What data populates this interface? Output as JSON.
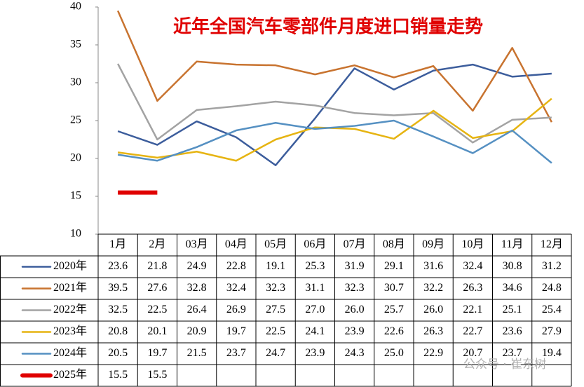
{
  "chart_data": {
    "type": "line",
    "title": "近年全国汽车零部件月度进口销量走势",
    "watermark": "公众号 · 崔东树",
    "categories": [
      "1月",
      "2月",
      "03月",
      "04月",
      "05月",
      "06月",
      "07月",
      "08月",
      "09月",
      "10月",
      "11月",
      "12月"
    ],
    "ylim": [
      10,
      40
    ],
    "yticks": [
      10,
      15,
      20,
      25,
      30,
      35,
      40
    ],
    "grid": false,
    "series": [
      {
        "name": "2020年",
        "color": "#3c5d9c",
        "values": [
          23.6,
          21.8,
          24.9,
          22.8,
          19.1,
          25.3,
          31.9,
          29.1,
          31.6,
          32.4,
          30.8,
          31.2
        ],
        "value_labels": [
          "23.6",
          "21.8",
          "24.9",
          "22.8",
          "19.1",
          "25.3",
          "31.9",
          "29.1",
          "31.6",
          "32.4",
          "30.8",
          "31.2"
        ]
      },
      {
        "name": "2021年",
        "color": "#c8732f",
        "values": [
          39.5,
          27.6,
          32.8,
          32.4,
          32.3,
          31.1,
          32.3,
          30.7,
          32.2,
          26.3,
          34.6,
          24.8
        ],
        "value_labels": [
          "39.5",
          "27.6",
          "32.8",
          "32.4",
          "32.3",
          "31.1",
          "32.3",
          "30.7",
          "32.2",
          "26.3",
          "34.6",
          "24.8"
        ]
      },
      {
        "name": "2022年",
        "color": "#a3a3a3",
        "values": [
          32.5,
          22.5,
          26.4,
          26.9,
          27.5,
          27.0,
          26.0,
          25.7,
          26.0,
          22.1,
          25.1,
          25.4
        ],
        "value_labels": [
          "32.5",
          "22.5",
          "26.4",
          "26.9",
          "27.5",
          "27.0",
          "26.0",
          "25.7",
          "26.0",
          "22.1",
          "25.1",
          "25.4"
        ]
      },
      {
        "name": "2023年",
        "color": "#e6b412",
        "values": [
          20.8,
          20.1,
          20.9,
          19.7,
          22.5,
          24.1,
          23.9,
          22.6,
          26.3,
          22.7,
          23.6,
          27.9
        ],
        "value_labels": [
          "20.8",
          "20.1",
          "20.9",
          "19.7",
          "22.5",
          "24.1",
          "23.9",
          "22.6",
          "26.3",
          "22.7",
          "23.6",
          "27.9"
        ]
      },
      {
        "name": "2024年",
        "color": "#5590c2",
        "values": [
          20.5,
          19.7,
          21.5,
          23.7,
          24.7,
          23.9,
          24.3,
          25.0,
          22.9,
          20.7,
          23.7,
          19.4
        ],
        "value_labels": [
          "20.5",
          "19.7",
          "21.5",
          "23.7",
          "24.7",
          "23.9",
          "24.3",
          "25.0",
          "22.9",
          "20.7",
          "23.7",
          "19.4"
        ]
      },
      {
        "name": "2025年",
        "color": "#e00000",
        "values": [
          15.5,
          15.5,
          null,
          null,
          null,
          null,
          null,
          null,
          null,
          null,
          null,
          null
        ],
        "value_labels": [
          "15.5",
          "15.5",
          null,
          null,
          null,
          null,
          null,
          null,
          null,
          null,
          null,
          null
        ]
      }
    ]
  }
}
